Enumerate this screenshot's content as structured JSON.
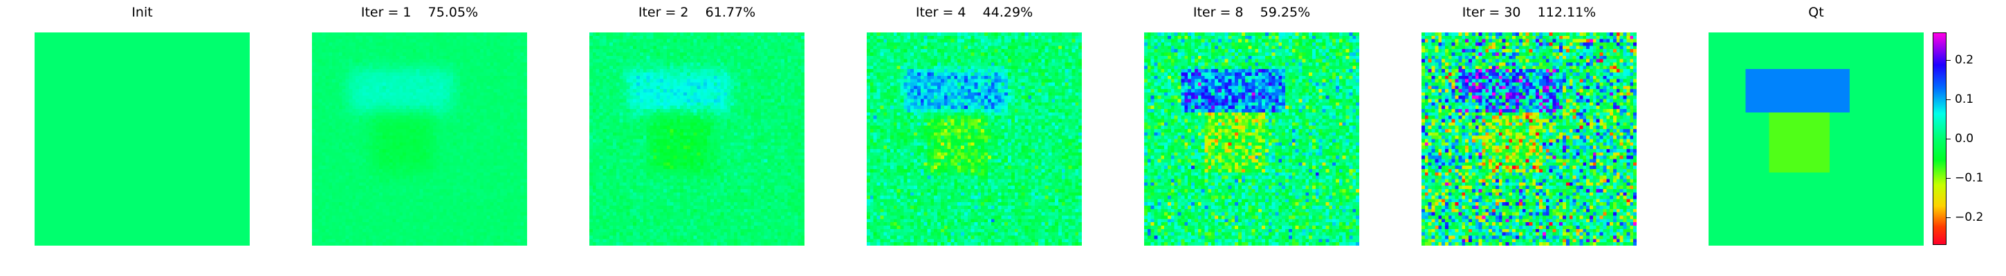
{
  "panels": [
    {
      "title": "Init",
      "kind": "init",
      "noise": 0.0
    },
    {
      "title": "Iter = 1    75.05%",
      "kind": "iter",
      "strength": 0.35,
      "noise": 0.004,
      "blur": 3
    },
    {
      "title": "Iter = 2    61.77%",
      "kind": "iter",
      "strength": 0.5,
      "noise": 0.012,
      "blur": 2
    },
    {
      "title": "Iter = 4    44.29%",
      "kind": "iter",
      "strength": 0.75,
      "noise": 0.03,
      "blur": 1
    },
    {
      "title": "Iter = 8    59.25%",
      "kind": "iter",
      "strength": 0.95,
      "noise": 0.05,
      "blur": 0
    },
    {
      "title": "Iter = 30    112.11%",
      "kind": "iter",
      "strength": 1.0,
      "noise": 0.09,
      "blur": 0
    },
    {
      "title": "Qt",
      "kind": "truth",
      "noise": 0.0
    }
  ],
  "colorbar": {
    "vmin": -0.27,
    "vmax": 0.27,
    "ticks": [
      {
        "value": 0.2,
        "label": "0.2"
      },
      {
        "value": 0.1,
        "label": "0.1"
      },
      {
        "value": 0.0,
        "label": "0.0"
      },
      {
        "value": -0.1,
        "label": "−0.1"
      },
      {
        "value": -0.2,
        "label": "−0.2"
      }
    ]
  },
  "colormap": "gist_rainbow",
  "field": {
    "background": 0.0,
    "upper_block_value": 0.12,
    "lower_block_value": -0.08
  }
}
